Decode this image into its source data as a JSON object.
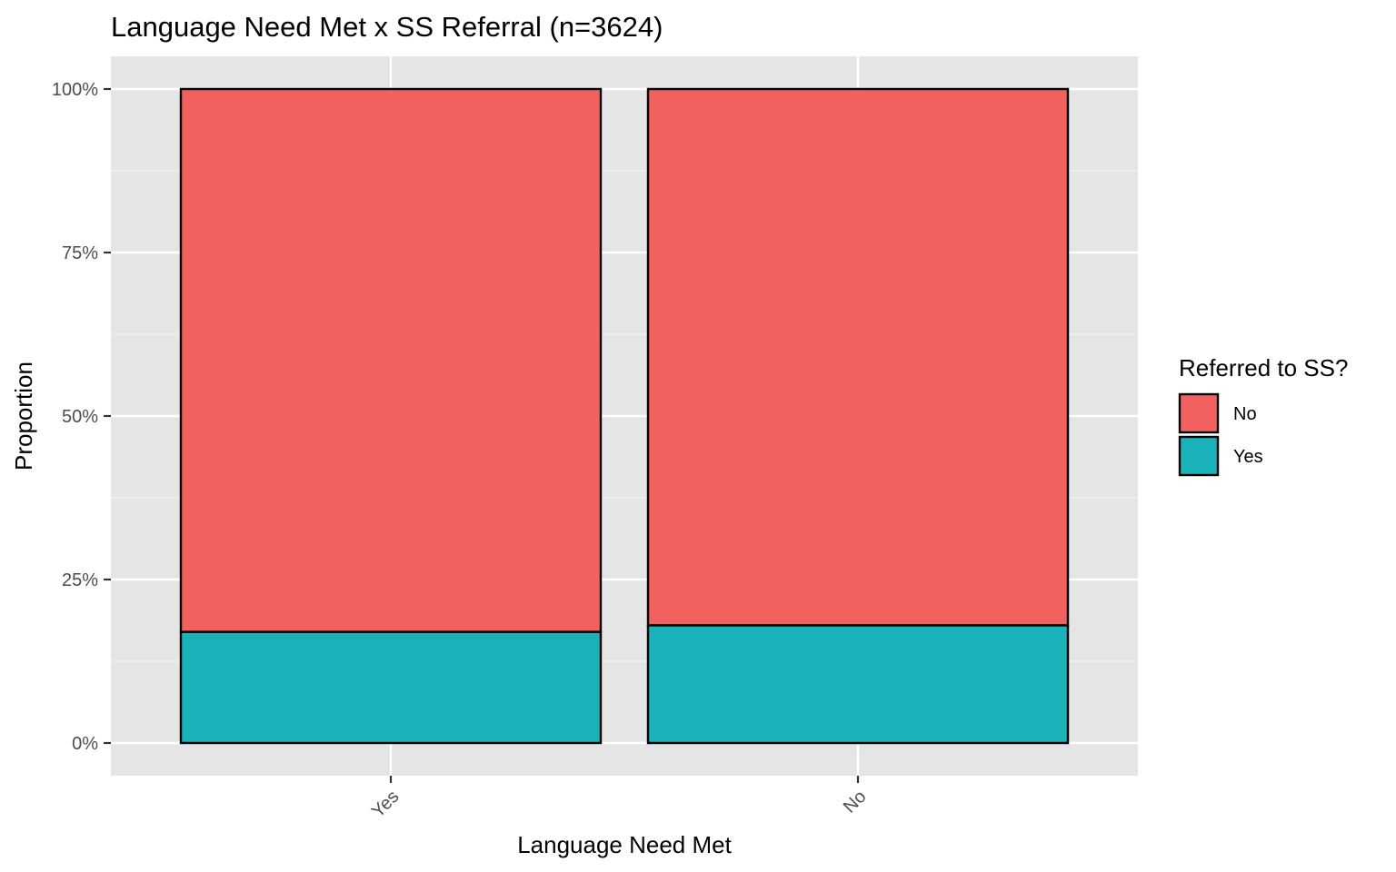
{
  "chart_data": {
    "type": "bar",
    "stacked": true,
    "title": "Language Need Met x SS Referral (n=3624)",
    "xlabel": "Language Need Met",
    "ylabel": "Proportion",
    "categories": [
      "Yes",
      "No"
    ],
    "series": [
      {
        "name": "No",
        "values": [
          0.83,
          0.82
        ],
        "color": "#F2615D"
      },
      {
        "name": "Yes",
        "values": [
          0.17,
          0.18
        ],
        "color": "#19B2B8"
      }
    ],
    "ylim": [
      0,
      1
    ],
    "y_ticks": [
      0,
      0.25,
      0.5,
      0.75,
      1.0
    ],
    "y_tick_labels": [
      "0%",
      "25%",
      "50%",
      "75%",
      "100%"
    ],
    "legend": {
      "title": "Referred to SS?",
      "position": "right",
      "items": [
        "No",
        "Yes"
      ]
    },
    "grid": true,
    "panel_background": "#E5E5E5",
    "bar_outline": "#000000"
  }
}
